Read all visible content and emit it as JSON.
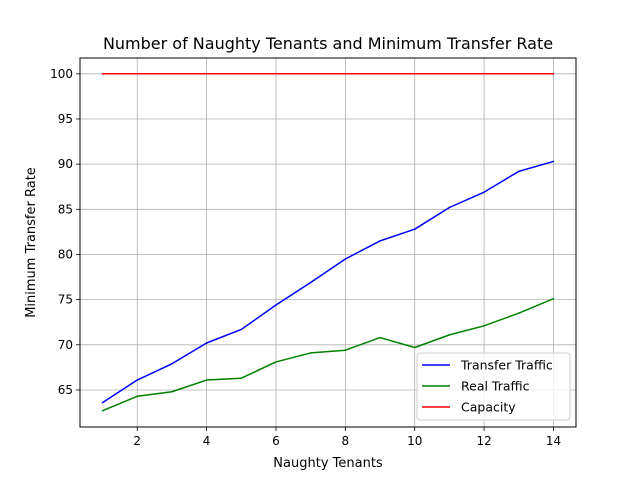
{
  "chart_data": {
    "type": "line",
    "title": "Number of Naughty Tenants and Minimum Transfer Rate",
    "xlabel": "Naughty Tenants",
    "ylabel": "Minimum Transfer Rate",
    "xlim": [
      0.35,
      14.65
    ],
    "ylim": [
      60.9,
      101.75
    ],
    "xticks": [
      2,
      4,
      6,
      8,
      10,
      12,
      14
    ],
    "yticks": [
      65,
      70,
      75,
      80,
      85,
      90,
      95,
      100
    ],
    "grid": true,
    "legend_position": "lower right",
    "x": [
      1,
      2,
      3,
      4,
      5,
      6,
      7,
      8,
      9,
      10,
      11,
      12,
      13,
      14
    ],
    "series": [
      {
        "name": "Transfer Traffic",
        "color": "#0000ff",
        "values": [
          63.6,
          66.1,
          67.9,
          70.2,
          71.7,
          74.4,
          76.9,
          79.5,
          81.5,
          82.8,
          85.2,
          86.9,
          89.2,
          90.3
        ]
      },
      {
        "name": "Real Traffic",
        "color": "#008000",
        "values": [
          62.7,
          64.3,
          64.8,
          66.1,
          66.3,
          68.1,
          69.1,
          69.4,
          70.8,
          69.7,
          71.1,
          72.1,
          73.5,
          75.1
        ]
      },
      {
        "name": "Capacity",
        "color": "#ff0000",
        "values": [
          100,
          100,
          100,
          100,
          100,
          100,
          100,
          100,
          100,
          100,
          100,
          100,
          100,
          100
        ]
      }
    ]
  }
}
